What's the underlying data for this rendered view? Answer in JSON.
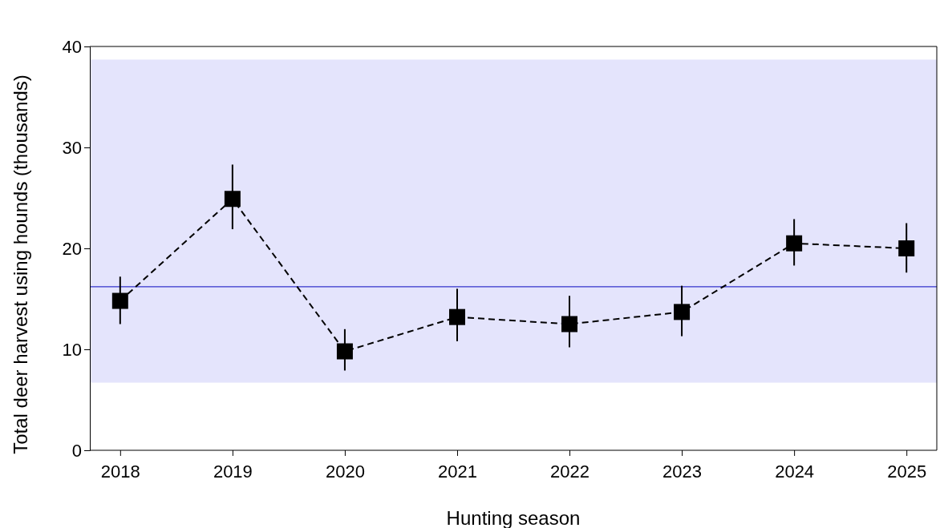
{
  "chart_data": {
    "type": "line",
    "xlabel": "Hunting season",
    "ylabel": "Total deer harvest using hounds (thousands)",
    "categories": [
      "2018",
      "2019",
      "2020",
      "2021",
      "2022",
      "2023",
      "2024",
      "2025"
    ],
    "series": [
      {
        "color": "#000000",
        "values": [
          14.8,
          24.9,
          9.8,
          13.2,
          12.5,
          13.7,
          20.5,
          20.0
        ],
        "errors": [
          [
            12.5,
            17.2
          ],
          [
            21.9,
            28.3
          ],
          [
            7.9,
            12.0
          ],
          [
            10.8,
            16.0
          ],
          [
            10.2,
            15.3
          ],
          [
            11.3,
            16.3
          ],
          [
            18.3,
            22.9
          ],
          [
            17.6,
            22.5
          ]
        ]
      }
    ],
    "ylim": [
      0,
      40
    ],
    "yticks": [
      0,
      10,
      20,
      30,
      40
    ],
    "marker": "square",
    "line_style": "dashed",
    "ref_lines": [
      {
        "axis": "y",
        "value": 16.2,
        "color": "#3333cc"
      }
    ],
    "bands": [
      {
        "axis": "y",
        "from": 6.7,
        "to": 38.7,
        "color": "#e4e4fc"
      }
    ]
  }
}
